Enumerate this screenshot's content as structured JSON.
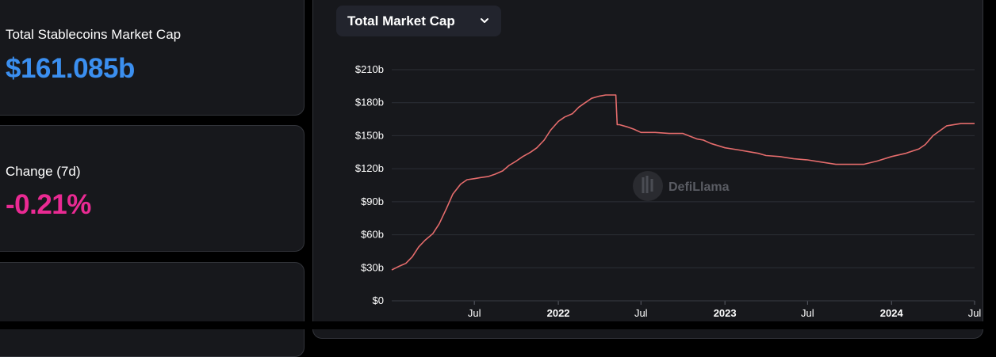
{
  "stats": {
    "market_cap": {
      "label": "Total Stablecoins Market Cap",
      "value": "$161.085b",
      "color": "#3b8ff0"
    },
    "change_7d": {
      "label": "Change (7d)",
      "value": "-0.21%",
      "color": "#ea2a93"
    }
  },
  "chart_selector": {
    "label": "Total Market Cap",
    "icon": "chevron-down-icon"
  },
  "watermark": {
    "text": "DefiLlama",
    "icon": "defillama-logo-icon"
  },
  "colors": {
    "line": "#e56c6c",
    "grid": "#2c2f36",
    "text": "#ffffff",
    "background": "#17181c"
  },
  "chart_data": {
    "type": "line",
    "title": "",
    "xlabel": "",
    "ylabel": "",
    "ylim": [
      0,
      210
    ],
    "y_ticks": [
      "$210b",
      "$180b",
      "$150b",
      "$120b",
      "$90b",
      "$60b",
      "$30b",
      "$0"
    ],
    "y_tick_values": [
      210,
      180,
      150,
      120,
      90,
      60,
      30,
      0
    ],
    "x_ticks": [
      {
        "label": "Jul",
        "date": "2021-07",
        "bold": false
      },
      {
        "label": "2022",
        "date": "2022-01",
        "bold": true
      },
      {
        "label": "Jul",
        "date": "2022-07",
        "bold": false
      },
      {
        "label": "2023",
        "date": "2023-01",
        "bold": true
      },
      {
        "label": "Jul",
        "date": "2023-07",
        "bold": false
      },
      {
        "label": "2024",
        "date": "2024-01",
        "bold": true
      },
      {
        "label": "Jul",
        "date": "2024-07",
        "bold": false
      }
    ],
    "grid": "horizontal",
    "legend": "none",
    "series": [
      {
        "dates": [
          "2021-01-01",
          "2021-01-15",
          "2021-02-01",
          "2021-02-15",
          "2021-03-01",
          "2021-03-15",
          "2021-04-01",
          "2021-04-15",
          "2021-05-01",
          "2021-05-15",
          "2021-06-01",
          "2021-06-15",
          "2021-07-01",
          "2021-07-15",
          "2021-08-01",
          "2021-08-15",
          "2021-09-01",
          "2021-09-15",
          "2021-10-01",
          "2021-10-15",
          "2021-11-01",
          "2021-11-15",
          "2021-12-01",
          "2021-12-15",
          "2022-01-01",
          "2022-01-15",
          "2022-02-01",
          "2022-02-15",
          "2022-03-01",
          "2022-03-15",
          "2022-04-01",
          "2022-04-15",
          "2022-05-01",
          "2022-05-07",
          "2022-05-10",
          "2022-05-15",
          "2022-06-01",
          "2022-06-15",
          "2022-07-01",
          "2022-08-01",
          "2022-09-01",
          "2022-10-01",
          "2022-11-01",
          "2022-11-15",
          "2022-12-01",
          "2023-01-01",
          "2023-02-01",
          "2023-03-01",
          "2023-03-15",
          "2023-04-01",
          "2023-05-01",
          "2023-06-01",
          "2023-07-01",
          "2023-08-01",
          "2023-09-01",
          "2023-10-01",
          "2023-11-01",
          "2023-12-01",
          "2024-01-01",
          "2024-02-01",
          "2024-03-01",
          "2024-03-15",
          "2024-04-01",
          "2024-05-01",
          "2024-06-01",
          "2024-07-01"
        ],
        "values": [
          28,
          31,
          34,
          40,
          49,
          55,
          61,
          70,
          84,
          97,
          106,
          110,
          111,
          112,
          113,
          115,
          118,
          123,
          127,
          131,
          135,
          139,
          146,
          155,
          163,
          167,
          170,
          176,
          180,
          184,
          186,
          187,
          187,
          187,
          160,
          160,
          158,
          156,
          153,
          153,
          152,
          152,
          147,
          146,
          143,
          139,
          137,
          135,
          134,
          132,
          131,
          129,
          128,
          126,
          124,
          124,
          124,
          127,
          131,
          134,
          138,
          142,
          150,
          159,
          161,
          161
        ]
      }
    ]
  }
}
